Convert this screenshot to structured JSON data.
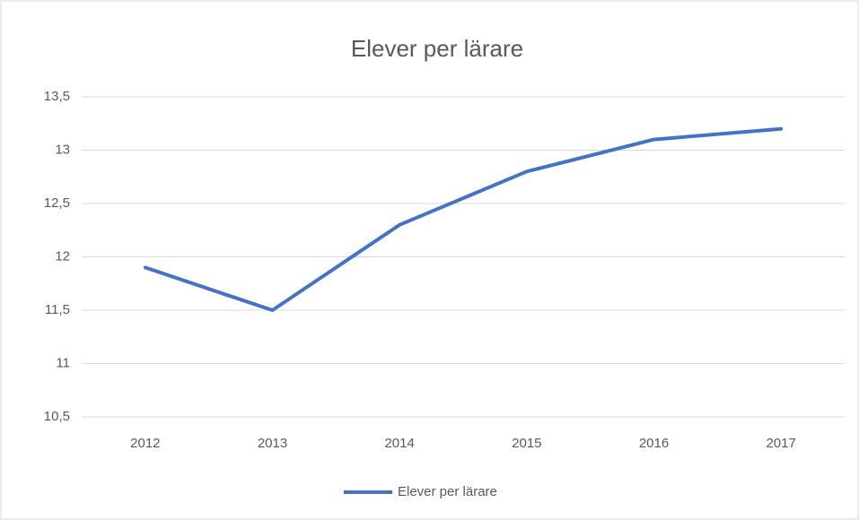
{
  "chart_data": {
    "type": "line",
    "title": "Elever per lärare",
    "categories": [
      "2012",
      "2013",
      "2014",
      "2015",
      "2016",
      "2017"
    ],
    "series": [
      {
        "name": "Elever per lärare",
        "color": "#4472c4",
        "values": [
          11.9,
          11.5,
          12.3,
          12.8,
          13.1,
          13.2
        ]
      }
    ],
    "ylim": [
      10.5,
      13.5
    ],
    "yticks": [
      {
        "value": 10.5,
        "label": "10,5"
      },
      11,
      {
        "value": 11.5,
        "label": "11,5"
      },
      12,
      {
        "value": 12.5,
        "label": "12,5"
      },
      13,
      {
        "value": 13.5,
        "label": "13,5"
      }
    ],
    "grid": true,
    "legend": "bottom"
  }
}
